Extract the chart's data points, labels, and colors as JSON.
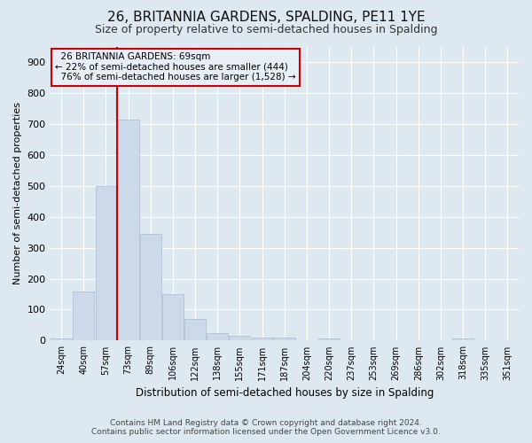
{
  "title": "26, BRITANNIA GARDENS, SPALDING, PE11 1YE",
  "subtitle": "Size of property relative to semi-detached houses in Spalding",
  "xlabel": "Distribution of semi-detached houses by size in Spalding",
  "ylabel": "Number of semi-detached properties",
  "categories": [
    "24sqm",
    "40sqm",
    "57sqm",
    "73sqm",
    "89sqm",
    "106sqm",
    "122sqm",
    "138sqm",
    "155sqm",
    "171sqm",
    "187sqm",
    "204sqm",
    "220sqm",
    "237sqm",
    "253sqm",
    "269sqm",
    "286sqm",
    "302sqm",
    "318sqm",
    "335sqm",
    "351sqm"
  ],
  "values": [
    8,
    160,
    500,
    715,
    345,
    150,
    70,
    25,
    15,
    10,
    10,
    0,
    8,
    0,
    0,
    0,
    0,
    0,
    8,
    0,
    0
  ],
  "bar_color": "#ccd9e8",
  "bar_edge_color": "#aabcce",
  "property_bin_index": 3,
  "property_label": "26 BRITANNIA GARDENS: 69sqm",
  "pct_smaller": 22,
  "count_smaller": 444,
  "pct_larger": 76,
  "count_larger": 1528,
  "red_line_color": "#cc0000",
  "annotation_bg_color": "#e8eef5",
  "annotation_text_color": "#000000",
  "background_color": "#dde8f0",
  "grid_color": "#ffffff",
  "ylim": [
    0,
    950
  ],
  "yticks": [
    0,
    100,
    200,
    300,
    400,
    500,
    600,
    700,
    800,
    900
  ],
  "footer_line1": "Contains HM Land Registry data © Crown copyright and database right 2024.",
  "footer_line2": "Contains public sector information licensed under the Open Government Licence v3.0."
}
